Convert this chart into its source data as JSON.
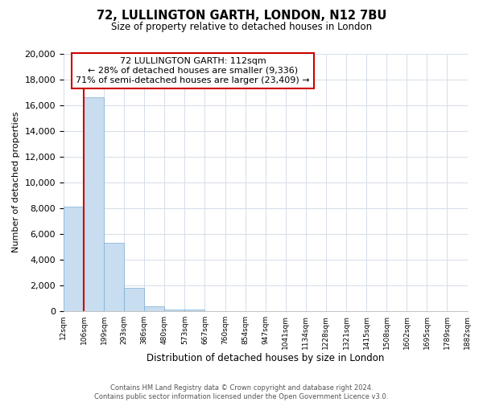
{
  "title": "72, LULLINGTON GARTH, LONDON, N12 7BU",
  "subtitle": "Size of property relative to detached houses in London",
  "xlabel": "Distribution of detached houses by size in London",
  "ylabel": "Number of detached properties",
  "bar_color": "#c8ddef",
  "bar_edge_color": "#7aafd4",
  "marker_color": "#cc0000",
  "annotation_title": "72 LULLINGTON GARTH: 112sqm",
  "annotation_line1": "← 28% of detached houses are smaller (9,336)",
  "annotation_line2": "71% of semi-detached houses are larger (23,409) →",
  "bin_labels": [
    "12sqm",
    "106sqm",
    "199sqm",
    "293sqm",
    "386sqm",
    "480sqm",
    "573sqm",
    "667sqm",
    "760sqm",
    "854sqm",
    "947sqm",
    "1041sqm",
    "1134sqm",
    "1228sqm",
    "1321sqm",
    "1415sqm",
    "1508sqm",
    "1602sqm",
    "1695sqm",
    "1789sqm",
    "1882sqm"
  ],
  "bar_heights": [
    8100,
    16600,
    5300,
    1800,
    400,
    150,
    150,
    0,
    0,
    0,
    0,
    0,
    0,
    0,
    0,
    0,
    0,
    0,
    0,
    0
  ],
  "ylim": [
    0,
    20000
  ],
  "yticks": [
    0,
    2000,
    4000,
    6000,
    8000,
    10000,
    12000,
    14000,
    16000,
    18000,
    20000
  ],
  "grid_color": "#d5dde8",
  "footer_line1": "Contains HM Land Registry data © Crown copyright and database right 2024.",
  "footer_line2": "Contains public sector information licensed under the Open Government Licence v3.0."
}
